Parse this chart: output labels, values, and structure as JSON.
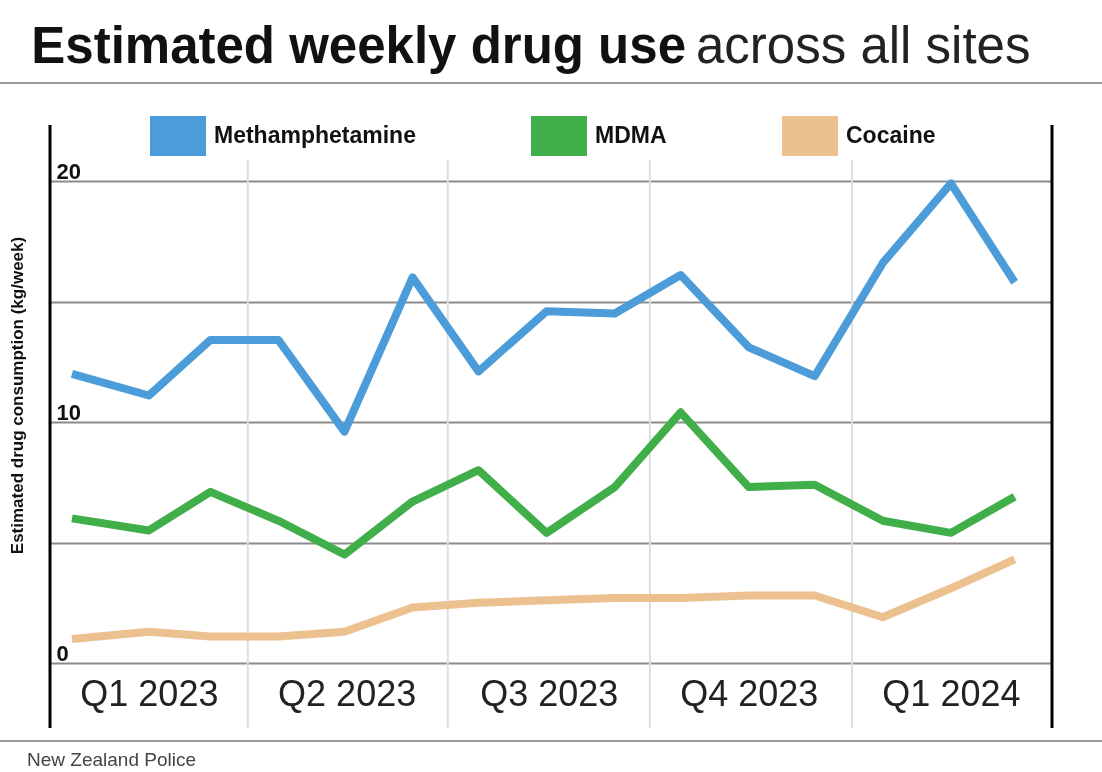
{
  "chart_data": {
    "type": "line",
    "title": "Estimated weekly drug use across all sites",
    "ylabel": "Estimated drug consumption (kg/week)",
    "x": [
      "2023-01-11",
      "2023-02-15",
      "2023-03-15",
      "2023-04-15",
      "2023-05-15",
      "2023-06-15",
      "2023-07-15",
      "2023-08-15",
      "2023-09-15",
      "2023-10-15",
      "2023-11-15",
      "2023-12-15",
      "2024-01-15",
      "2024-02-15",
      "2024-03-15"
    ],
    "series": [
      {
        "name": "Methamphetamine",
        "color": "#4b9cd8",
        "values": [
          12.0,
          11.1,
          13.4,
          13.4,
          9.6,
          16.0,
          12.1,
          14.6,
          14.5,
          16.1,
          13.1,
          11.9,
          16.6,
          19.9,
          15.8
        ]
      },
      {
        "name": "MDMA",
        "color": "#40ae49",
        "values": [
          6.0,
          5.5,
          7.1,
          5.9,
          4.5,
          6.7,
          8.0,
          5.4,
          7.3,
          10.4,
          7.3,
          7.4,
          5.9,
          5.4,
          6.9
        ]
      },
      {
        "name": "Cocaine",
        "color": "#edc08f",
        "values": [
          1.0,
          1.3,
          1.1,
          1.1,
          1.3,
          2.3,
          2.5,
          2.6,
          2.7,
          2.7,
          2.8,
          2.8,
          1.9,
          3.1,
          4.3
        ]
      }
    ],
    "xlim": [
      "2023-01-01",
      "2024-04-01"
    ],
    "xticks": [
      {
        "value": "2023-02-15",
        "label": "Q1 2023"
      },
      {
        "value": "2023-04-01",
        "label": null
      },
      {
        "value": "2023-05-16",
        "label": "Q2 2023"
      },
      {
        "value": "2023-07-01",
        "label": null
      },
      {
        "value": "2023-08-16",
        "label": "Q3 2023"
      },
      {
        "value": "2023-10-01",
        "label": null
      },
      {
        "value": "2023-11-15",
        "label": "Q4 2023"
      },
      {
        "value": "2024-01-01",
        "label": null
      },
      {
        "value": "2024-02-15",
        "label": "Q1 2024"
      }
    ],
    "ylim": [
      0,
      20
    ],
    "yticks": [
      0,
      {
        "value": 5,
        "label": null
      },
      10,
      {
        "value": 15,
        "label": null
      },
      20
    ],
    "grid": true,
    "legend": "top",
    "annotations": [
      "New Zealand Police"
    ]
  }
}
